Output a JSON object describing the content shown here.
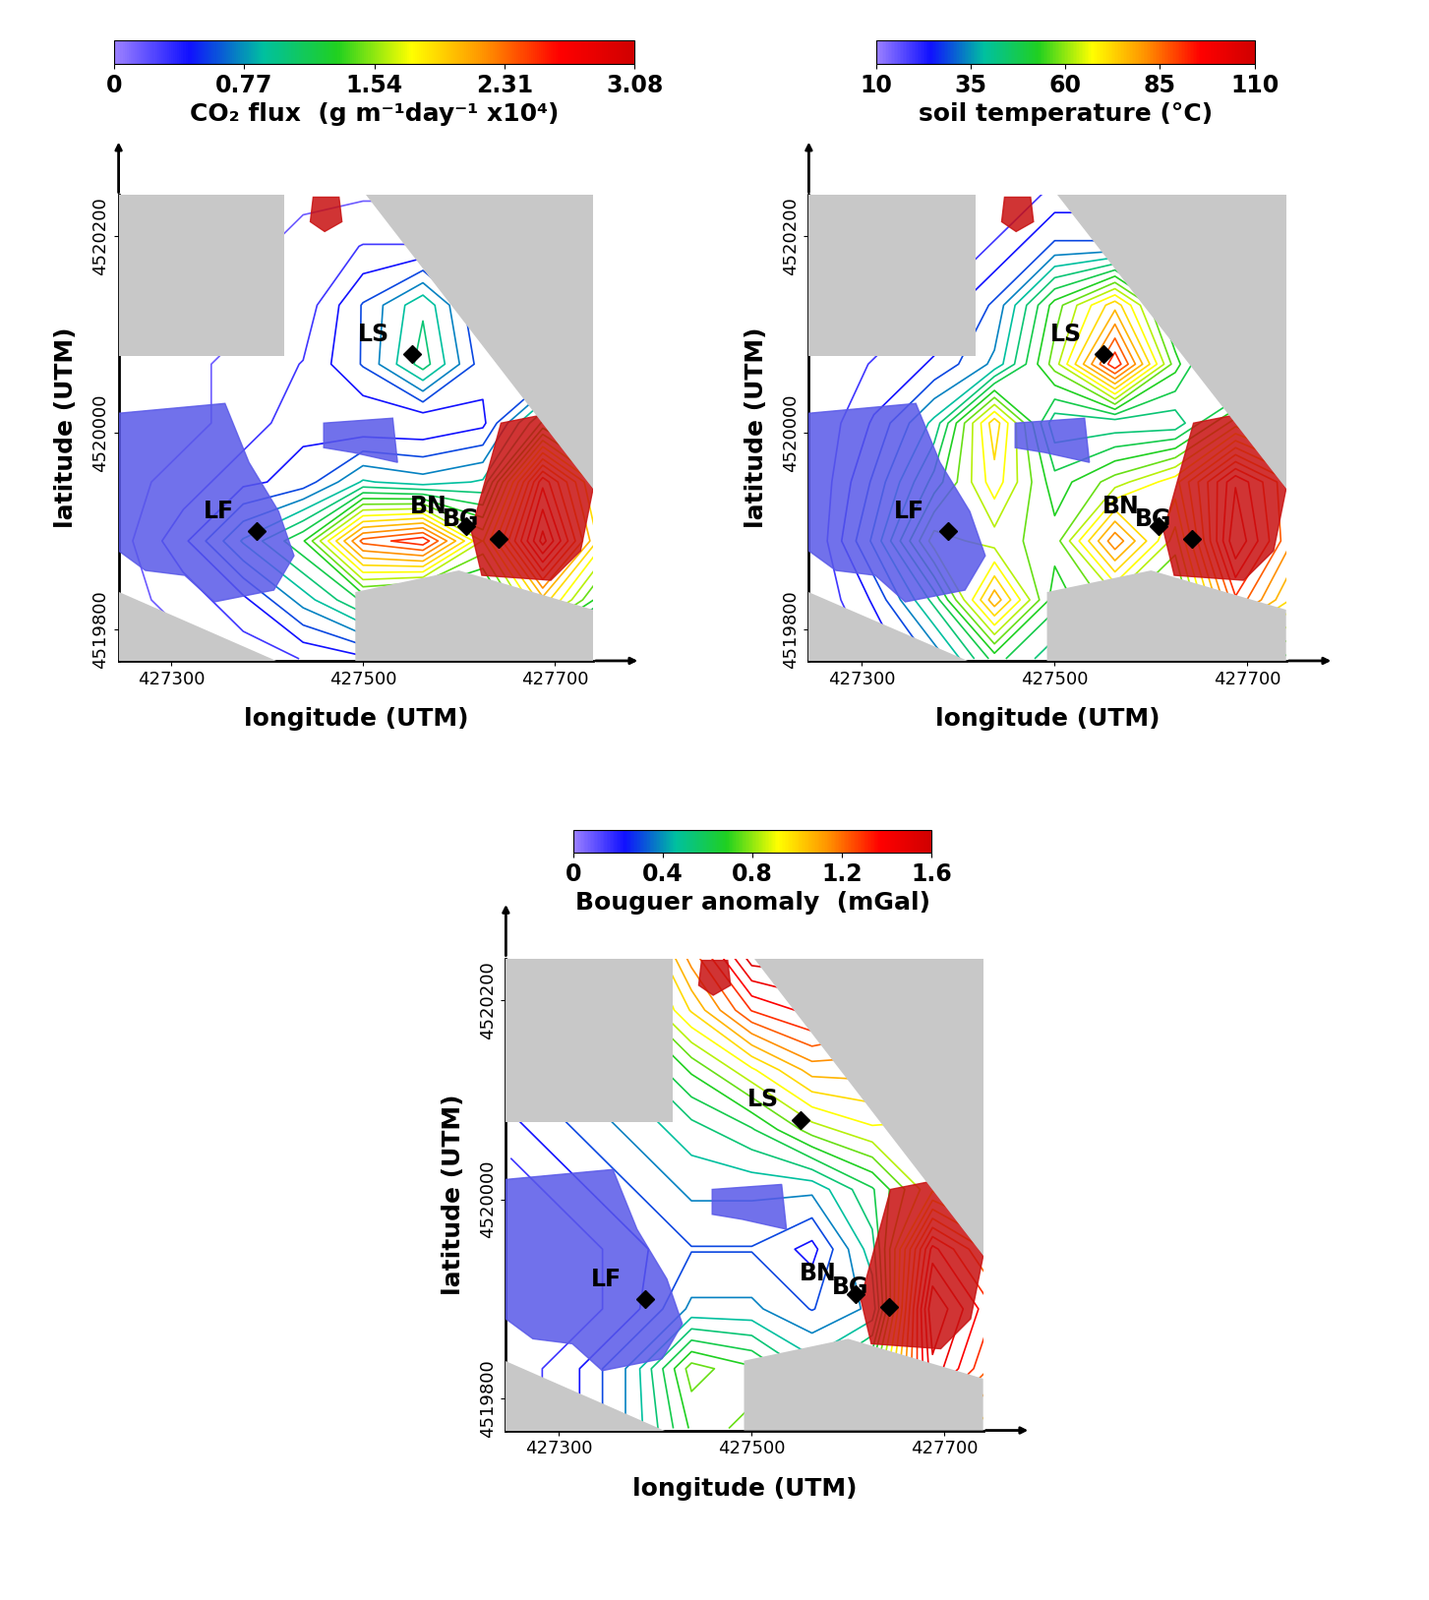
{
  "chart_data": [
    {
      "type": "contour",
      "colorbar_label": "CO₂ flux  (g m⁻¹day⁻¹ x10⁴)",
      "clim": [
        0,
        3.08
      ],
      "cticks": [
        0,
        0.77,
        1.54,
        2.31,
        3.08
      ],
      "xlabel": "longitude (UTM)",
      "ylabel": "latitude (UTM)",
      "xlim": [
        427245,
        427740
      ],
      "ylim": [
        4519768,
        4520242
      ],
      "xticks": [
        427300,
        427500,
        427700
      ],
      "yticks": [
        4519800,
        4520000,
        4520200
      ],
      "grid": false,
      "x": [
        427250,
        427312.5,
        427375,
        427437.5,
        427500,
        427562.5,
        427625,
        427687.5,
        427750
      ],
      "y": [
        4519770,
        4519830,
        4519890,
        4519950,
        4520010,
        4520070,
        4520130,
        4520190,
        4520250
      ],
      "z": [
        [
          0.1,
          0.1,
          0.2,
          0.3,
          0.4,
          0.4,
          0.5,
          0.8,
          0.6
        ],
        [
          0.1,
          0.2,
          0.4,
          0.8,
          1.2,
          1.0,
          1.0,
          2.0,
          1.2
        ],
        [
          0.1,
          0.4,
          0.9,
          1.3,
          2.4,
          2.6,
          1.6,
          3.0,
          1.8
        ],
        [
          0.1,
          0.2,
          0.4,
          0.5,
          0.9,
          0.8,
          0.9,
          2.6,
          1.6
        ],
        [
          0.1,
          0.1,
          0.2,
          0.4,
          0.3,
          0.3,
          0.4,
          1.2,
          0.8
        ],
        [
          0.1,
          0.1,
          0.2,
          0.3,
          0.6,
          1.1,
          0.5,
          0.3,
          0.2
        ],
        [
          0.1,
          0.1,
          0.1,
          0.2,
          0.6,
          1.0,
          0.4,
          0.2,
          0.1
        ],
        [
          0.1,
          0.1,
          0.1,
          0.2,
          0.3,
          0.3,
          0.2,
          0.1,
          0.1
        ],
        [
          0.1,
          0.1,
          0.1,
          0.1,
          0.1,
          0.1,
          0.1,
          0.1,
          0.1
        ]
      ],
      "points": [
        {
          "name": "LS",
          "x": 427551,
          "y": 4520080
        },
        {
          "name": "LF",
          "x": 427389,
          "y": 4519900
        },
        {
          "name": "BN",
          "x": 427608,
          "y": 4519905
        },
        {
          "name": "BG",
          "x": 427642,
          "y": 4519892
        }
      ],
      "masked_areas": [
        {
          "x": [
            427245,
            427418,
            427418,
            427245
          ],
          "y": [
            4520242,
            4520242,
            4520078,
            4520078
          ]
        },
        {
          "x": [
            427503,
            427740,
            427740
          ],
          "y": [
            4520242,
            4520242,
            4519943
          ]
        },
        {
          "x": [
            427245,
            427245,
            427410
          ],
          "y": [
            4519838,
            4519768,
            4519768
          ]
        },
        {
          "x": [
            427492,
            427492,
            427600,
            427740,
            427740
          ],
          "y": [
            4519768,
            4519838,
            4519860,
            4519820,
            4519768
          ]
        }
      ],
      "bodies": [
        {
          "color": "#5858e8",
          "x": [
            427245,
            427356,
            427381,
            427412,
            427428,
            427407,
            427345,
            427314,
            427273,
            427245
          ],
          "y": [
            4520020,
            4520030,
            4519970,
            4519920,
            4519875,
            4519840,
            4519828,
            4519855,
            4519860,
            4519880
          ]
        },
        {
          "color": "#5858e8",
          "x": [
            427459,
            427531,
            427536,
            427490,
            427459
          ],
          "y": [
            4520010,
            4520015,
            4519970,
            4519980,
            4519985
          ]
        },
        {
          "color": "#c81010",
          "x": [
            427644,
            427696,
            427740,
            427727,
            427696,
            427624,
            427613
          ],
          "y": [
            4520010,
            4520020,
            4519943,
            4519880,
            4519850,
            4519855,
            4519900
          ]
        },
        {
          "color": "#c81010",
          "x": [
            427445,
            427460,
            427478,
            427475,
            427448
          ],
          "y": [
            4520215,
            4520205,
            4520215,
            4520240,
            4520240
          ]
        }
      ]
    },
    {
      "type": "contour",
      "colorbar_label": "soil temperature (°C)",
      "clim": [
        10,
        110
      ],
      "cticks": [
        10,
        35,
        60,
        85,
        110
      ],
      "xlabel": "longitude (UTM)",
      "ylabel": "latitude (UTM)",
      "xlim": [
        427245,
        427740
      ],
      "ylim": [
        4519768,
        4520242
      ],
      "xticks": [
        427300,
        427500,
        427700
      ],
      "yticks": [
        4519800,
        4520000,
        4520200
      ],
      "grid": false,
      "x": [
        427250,
        427312.5,
        427375,
        427437.5,
        427500,
        427562.5,
        427625,
        427687.5,
        427750
      ],
      "y": [
        4519770,
        4519830,
        4519890,
        4519950,
        4520010,
        4520070,
        4520130,
        4520190,
        4520250
      ],
      "z": [
        [
          15,
          20,
          30,
          50,
          40,
          35,
          40,
          60,
          50
        ],
        [
          15,
          25,
          45,
          80,
          50,
          60,
          50,
          90,
          70
        ],
        [
          15,
          35,
          65,
          60,
          55,
          85,
          60,
          105,
          80
        ],
        [
          15,
          30,
          50,
          70,
          50,
          60,
          70,
          100,
          80
        ],
        [
          15,
          25,
          40,
          75,
          40,
          40,
          40,
          60,
          50
        ],
        [
          15,
          20,
          25,
          35,
          60,
          95,
          55,
          30,
          25
        ],
        [
          15,
          15,
          20,
          30,
          55,
          75,
          45,
          25,
          20
        ],
        [
          15,
          15,
          15,
          20,
          30,
          30,
          25,
          20,
          15
        ],
        [
          15,
          15,
          15,
          15,
          20,
          20,
          20,
          15,
          15
        ]
      ],
      "points": [
        {
          "name": "LS",
          "x": 427551,
          "y": 4520080
        },
        {
          "name": "LF",
          "x": 427389,
          "y": 4519900
        },
        {
          "name": "BN",
          "x": 427608,
          "y": 4519905
        },
        {
          "name": "BG",
          "x": 427642,
          "y": 4519892
        }
      ],
      "masked_areas": [
        {
          "x": [
            427245,
            427418,
            427418,
            427245
          ],
          "y": [
            4520242,
            4520242,
            4520078,
            4520078
          ]
        },
        {
          "x": [
            427503,
            427740,
            427740
          ],
          "y": [
            4520242,
            4520242,
            4519943
          ]
        },
        {
          "x": [
            427245,
            427245,
            427410
          ],
          "y": [
            4519838,
            4519768,
            4519768
          ]
        },
        {
          "x": [
            427492,
            427492,
            427600,
            427740,
            427740
          ],
          "y": [
            4519768,
            4519838,
            4519860,
            4519820,
            4519768
          ]
        }
      ],
      "bodies": [
        {
          "color": "#5858e8",
          "x": [
            427245,
            427356,
            427381,
            427412,
            427428,
            427407,
            427345,
            427314,
            427273,
            427245
          ],
          "y": [
            4520020,
            4520030,
            4519970,
            4519920,
            4519875,
            4519840,
            4519828,
            4519855,
            4519860,
            4519880
          ]
        },
        {
          "color": "#5858e8",
          "x": [
            427459,
            427531,
            427536,
            427490,
            427459
          ],
          "y": [
            4520010,
            4520015,
            4519970,
            4519980,
            4519985
          ]
        },
        {
          "color": "#c81010",
          "x": [
            427644,
            427696,
            427740,
            427727,
            427696,
            427624,
            427613
          ],
          "y": [
            4520010,
            4520020,
            4519943,
            4519880,
            4519850,
            4519855,
            4519900
          ]
        },
        {
          "color": "#c81010",
          "x": [
            427445,
            427460,
            427478,
            427475,
            427448
          ],
          "y": [
            4520215,
            4520205,
            4520215,
            4520240,
            4520240
          ]
        }
      ]
    },
    {
      "type": "contour",
      "colorbar_label": "Bouguer anomaly  (mGal)",
      "clim": [
        0,
        1.6
      ],
      "cticks": [
        0,
        0.4,
        0.8,
        1.2,
        1.6
      ],
      "xlabel": "longitude (UTM)",
      "ylabel": "latitude (UTM)",
      "xlim": [
        427245,
        427740
      ],
      "ylim": [
        4519768,
        4520242
      ],
      "xticks": [
        427300,
        427500,
        427700
      ],
      "yticks": [
        4519800,
        4520000,
        4520200
      ],
      "grid": false,
      "x": [
        427250,
        427312.5,
        427375,
        427437.5,
        427500,
        427562.5,
        427625,
        427687.5,
        427750
      ],
      "y": [
        4519770,
        4519830,
        4519890,
        4519950,
        4520010,
        4520070,
        4520130,
        4520190,
        4520250
      ],
      "z": [
        [
          0.1,
          0.2,
          0.4,
          0.7,
          0.8,
          0.7,
          0.8,
          1.2,
          1.0
        ],
        [
          0.1,
          0.2,
          0.4,
          0.8,
          0.7,
          0.5,
          0.7,
          1.5,
          1.2
        ],
        [
          0.1,
          0.1,
          0.2,
          0.4,
          0.4,
          0.3,
          0.4,
          1.6,
          1.3
        ],
        [
          0.1,
          0.1,
          0.2,
          0.3,
          0.3,
          0.2,
          0.5,
          1.4,
          1.1
        ],
        [
          0.1,
          0.2,
          0.3,
          0.4,
          0.4,
          0.4,
          0.6,
          0.9,
          0.8
        ],
        [
          0.2,
          0.3,
          0.4,
          0.5,
          0.6,
          0.8,
          0.9,
          0.9,
          0.8
        ],
        [
          0.3,
          0.4,
          0.5,
          0.7,
          0.9,
          1.1,
          1.1,
          1.0,
          0.9
        ],
        [
          0.4,
          0.5,
          0.7,
          1.0,
          1.3,
          1.4,
          1.3,
          1.1,
          1.0
        ],
        [
          0.5,
          0.6,
          0.8,
          1.2,
          1.6,
          1.6,
          1.4,
          1.2,
          1.1
        ]
      ],
      "points": [
        {
          "name": "LS",
          "x": 427551,
          "y": 4520080
        },
        {
          "name": "LF",
          "x": 427389,
          "y": 4519900
        },
        {
          "name": "BN",
          "x": 427608,
          "y": 4519905
        },
        {
          "name": "BG",
          "x": 427642,
          "y": 4519892
        }
      ],
      "masked_areas": [
        {
          "x": [
            427245,
            427418,
            427418,
            427245
          ],
          "y": [
            4520242,
            4520242,
            4520078,
            4520078
          ]
        },
        {
          "x": [
            427503,
            427740,
            427740
          ],
          "y": [
            4520242,
            4520242,
            4519943
          ]
        },
        {
          "x": [
            427245,
            427245,
            427410
          ],
          "y": [
            4519838,
            4519768,
            4519768
          ]
        },
        {
          "x": [
            427492,
            427492,
            427600,
            427740,
            427740
          ],
          "y": [
            4519768,
            4519838,
            4519860,
            4519820,
            4519768
          ]
        }
      ],
      "bodies": [
        {
          "color": "#5858e8",
          "x": [
            427245,
            427356,
            427381,
            427412,
            427428,
            427407,
            427345,
            427314,
            427273,
            427245
          ],
          "y": [
            4520020,
            4520030,
            4519970,
            4519920,
            4519875,
            4519840,
            4519828,
            4519855,
            4519860,
            4519880
          ]
        },
        {
          "color": "#5858e8",
          "x": [
            427459,
            427531,
            427536,
            427490,
            427459
          ],
          "y": [
            4520010,
            4520015,
            4519970,
            4519980,
            4519985
          ]
        },
        {
          "color": "#c81010",
          "x": [
            427644,
            427696,
            427740,
            427727,
            427696,
            427624,
            427613
          ],
          "y": [
            4520010,
            4520020,
            4519943,
            4519880,
            4519850,
            4519855,
            4519900
          ]
        },
        {
          "color": "#c81010",
          "x": [
            427445,
            427460,
            427478,
            427475,
            427448
          ],
          "y": [
            4520215,
            4520205,
            4520215,
            4520240,
            4520240
          ]
        }
      ]
    }
  ]
}
